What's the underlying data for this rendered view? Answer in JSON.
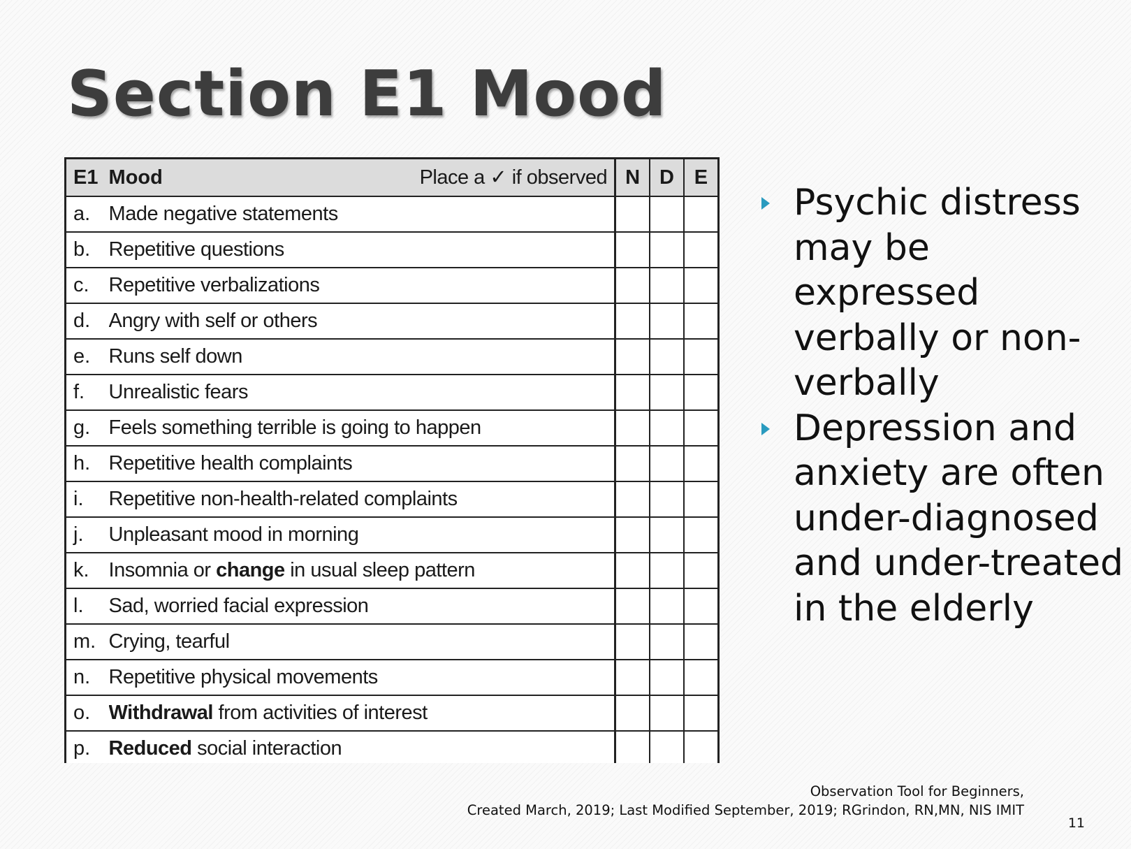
{
  "slide": {
    "title": "Section E1 Mood",
    "page_number": "11"
  },
  "form": {
    "header": {
      "code": "E1",
      "label": "Mood",
      "instruction": "Place a ✓ if observed",
      "columns": [
        "N",
        "D",
        "E"
      ]
    },
    "items": [
      {
        "letter": "a.",
        "text": "Made negative statements"
      },
      {
        "letter": "b.",
        "text": "Repetitive questions"
      },
      {
        "letter": "c.",
        "text": "Repetitive verbalizations"
      },
      {
        "letter": "d.",
        "text": "Angry with self or others"
      },
      {
        "letter": "e.",
        "text": "Runs self down"
      },
      {
        "letter": "f.",
        "text": "Unrealistic fears"
      },
      {
        "letter": "g.",
        "text": "Feels something terrible is going to happen"
      },
      {
        "letter": "h.",
        "text": "Repetitive health complaints"
      },
      {
        "letter": "i.",
        "text": "Repetitive non-health-related complaints"
      },
      {
        "letter": "j.",
        "text": "Unpleasant mood in morning"
      },
      {
        "letter": "k.",
        "text_before": "Insomnia or ",
        "text_bold": "change",
        "text_after": " in usual sleep pattern"
      },
      {
        "letter": "l.",
        "text": "Sad, worried facial expression"
      },
      {
        "letter": "m.",
        "text": "Crying, tearful"
      },
      {
        "letter": "n.",
        "text": "Repetitive physical movements"
      },
      {
        "letter": "o.",
        "text_before": "",
        "text_bold": "Withdrawal",
        "text_after": " from activities of interest"
      },
      {
        "letter": "p.",
        "text_before": "",
        "text_bold": "Reduced",
        "text_after": " social interaction"
      }
    ]
  },
  "bullets": [
    "Psychic distress may be expressed verbally or non-verbally",
    "Depression and anxiety are often under-diagnosed and under-treated in the elderly"
  ],
  "footer": {
    "line1": "Observation Tool for Beginners,",
    "line2": "Created March, 2019; Last  Modified September, 2019;  RGrindon, RN,MN, NIS IMIT"
  },
  "colors": {
    "bullet_arrow": "#2a9bbf",
    "header_fill": "#dcdcdc"
  }
}
